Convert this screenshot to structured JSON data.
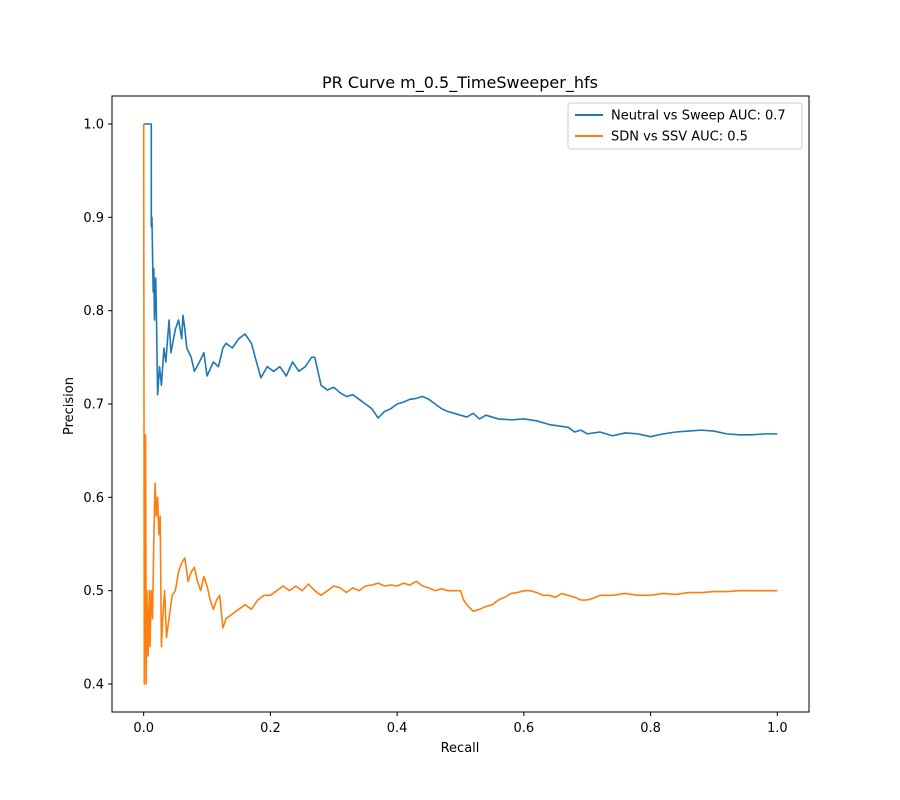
{
  "chart_data": {
    "type": "line",
    "title": "PR Curve m_0.5_TimeSweeper_hfs",
    "xlabel": "Recall",
    "ylabel": "Precision",
    "xlim": [
      -0.05,
      1.05
    ],
    "ylim": [
      0.37,
      1.03
    ],
    "xticks": [
      0.0,
      0.2,
      0.4,
      0.6,
      0.8,
      1.0
    ],
    "xtick_labels": [
      "0.0",
      "0.2",
      "0.4",
      "0.6",
      "0.8",
      "1.0"
    ],
    "yticks": [
      0.4,
      0.5,
      0.6,
      0.7,
      0.8,
      0.9,
      1.0
    ],
    "ytick_labels": [
      "0.4",
      "0.5",
      "0.6",
      "0.7",
      "0.8",
      "0.9",
      "1.0"
    ],
    "grid": false,
    "legend_position": "upper right",
    "series": [
      {
        "name": "Neutral vs Sweep AUC: 0.7",
        "color": "#1f77b4",
        "points": [
          [
            0.0,
            1.0
          ],
          [
            0.012,
            1.0
          ],
          [
            0.012,
            0.89
          ],
          [
            0.013,
            0.9
          ],
          [
            0.015,
            0.82
          ],
          [
            0.016,
            0.845
          ],
          [
            0.017,
            0.79
          ],
          [
            0.019,
            0.835
          ],
          [
            0.02,
            0.8
          ],
          [
            0.022,
            0.71
          ],
          [
            0.025,
            0.74
          ],
          [
            0.028,
            0.72
          ],
          [
            0.032,
            0.76
          ],
          [
            0.035,
            0.745
          ],
          [
            0.04,
            0.79
          ],
          [
            0.043,
            0.755
          ],
          [
            0.05,
            0.78
          ],
          [
            0.055,
            0.79
          ],
          [
            0.06,
            0.77
          ],
          [
            0.062,
            0.795
          ],
          [
            0.065,
            0.78
          ],
          [
            0.068,
            0.76
          ],
          [
            0.075,
            0.75
          ],
          [
            0.08,
            0.735
          ],
          [
            0.088,
            0.745
          ],
          [
            0.095,
            0.755
          ],
          [
            0.1,
            0.73
          ],
          [
            0.11,
            0.745
          ],
          [
            0.118,
            0.74
          ],
          [
            0.125,
            0.76
          ],
          [
            0.13,
            0.765
          ],
          [
            0.14,
            0.76
          ],
          [
            0.15,
            0.77
          ],
          [
            0.16,
            0.775
          ],
          [
            0.17,
            0.765
          ],
          [
            0.18,
            0.74
          ],
          [
            0.185,
            0.728
          ],
          [
            0.195,
            0.74
          ],
          [
            0.205,
            0.735
          ],
          [
            0.215,
            0.74
          ],
          [
            0.225,
            0.73
          ],
          [
            0.235,
            0.745
          ],
          [
            0.245,
            0.735
          ],
          [
            0.255,
            0.74
          ],
          [
            0.265,
            0.75
          ],
          [
            0.27,
            0.75
          ],
          [
            0.275,
            0.735
          ],
          [
            0.28,
            0.72
          ],
          [
            0.29,
            0.715
          ],
          [
            0.3,
            0.718
          ],
          [
            0.31,
            0.712
          ],
          [
            0.32,
            0.708
          ],
          [
            0.33,
            0.71
          ],
          [
            0.34,
            0.705
          ],
          [
            0.35,
            0.7
          ],
          [
            0.36,
            0.695
          ],
          [
            0.365,
            0.69
          ],
          [
            0.37,
            0.685
          ],
          [
            0.38,
            0.692
          ],
          [
            0.39,
            0.695
          ],
          [
            0.4,
            0.7
          ],
          [
            0.41,
            0.702
          ],
          [
            0.42,
            0.705
          ],
          [
            0.43,
            0.706
          ],
          [
            0.44,
            0.708
          ],
          [
            0.45,
            0.705
          ],
          [
            0.46,
            0.7
          ],
          [
            0.47,
            0.695
          ],
          [
            0.48,
            0.692
          ],
          [
            0.49,
            0.69
          ],
          [
            0.5,
            0.688
          ],
          [
            0.51,
            0.686
          ],
          [
            0.52,
            0.69
          ],
          [
            0.53,
            0.684
          ],
          [
            0.54,
            0.688
          ],
          [
            0.55,
            0.686
          ],
          [
            0.56,
            0.684
          ],
          [
            0.58,
            0.683
          ],
          [
            0.6,
            0.684
          ],
          [
            0.62,
            0.682
          ],
          [
            0.64,
            0.678
          ],
          [
            0.66,
            0.676
          ],
          [
            0.67,
            0.675
          ],
          [
            0.68,
            0.67
          ],
          [
            0.69,
            0.672
          ],
          [
            0.7,
            0.668
          ],
          [
            0.72,
            0.67
          ],
          [
            0.74,
            0.666
          ],
          [
            0.76,
            0.669
          ],
          [
            0.78,
            0.668
          ],
          [
            0.8,
            0.665
          ],
          [
            0.82,
            0.668
          ],
          [
            0.84,
            0.67
          ],
          [
            0.86,
            0.671
          ],
          [
            0.88,
            0.672
          ],
          [
            0.9,
            0.671
          ],
          [
            0.92,
            0.668
          ],
          [
            0.94,
            0.667
          ],
          [
            0.96,
            0.667
          ],
          [
            0.98,
            0.668
          ],
          [
            1.0,
            0.668
          ]
        ]
      },
      {
        "name": "SDN vs SSV AUC: 0.5",
        "color": "#ff7f0e",
        "points": [
          [
            0.0,
            1.0
          ],
          [
            0.001,
            0.4
          ],
          [
            0.002,
            0.5
          ],
          [
            0.003,
            0.667
          ],
          [
            0.004,
            0.4
          ],
          [
            0.005,
            0.5
          ],
          [
            0.007,
            0.43
          ],
          [
            0.008,
            0.47
          ],
          [
            0.009,
            0.5
          ],
          [
            0.01,
            0.44
          ],
          [
            0.012,
            0.5
          ],
          [
            0.014,
            0.47
          ],
          [
            0.016,
            0.555
          ],
          [
            0.018,
            0.615
          ],
          [
            0.02,
            0.58
          ],
          [
            0.022,
            0.6
          ],
          [
            0.024,
            0.56
          ],
          [
            0.026,
            0.58
          ],
          [
            0.028,
            0.44
          ],
          [
            0.03,
            0.47
          ],
          [
            0.033,
            0.5
          ],
          [
            0.036,
            0.45
          ],
          [
            0.04,
            0.47
          ],
          [
            0.045,
            0.495
          ],
          [
            0.05,
            0.5
          ],
          [
            0.055,
            0.52
          ],
          [
            0.06,
            0.53
          ],
          [
            0.065,
            0.535
          ],
          [
            0.07,
            0.51
          ],
          [
            0.075,
            0.52
          ],
          [
            0.08,
            0.525
          ],
          [
            0.085,
            0.51
          ],
          [
            0.09,
            0.5
          ],
          [
            0.095,
            0.515
          ],
          [
            0.1,
            0.505
          ],
          [
            0.105,
            0.49
          ],
          [
            0.11,
            0.48
          ],
          [
            0.115,
            0.49
          ],
          [
            0.12,
            0.495
          ],
          [
            0.125,
            0.46
          ],
          [
            0.13,
            0.47
          ],
          [
            0.14,
            0.475
          ],
          [
            0.15,
            0.48
          ],
          [
            0.16,
            0.485
          ],
          [
            0.17,
            0.48
          ],
          [
            0.18,
            0.49
          ],
          [
            0.19,
            0.495
          ],
          [
            0.2,
            0.495
          ],
          [
            0.21,
            0.5
          ],
          [
            0.22,
            0.505
          ],
          [
            0.23,
            0.5
          ],
          [
            0.24,
            0.505
          ],
          [
            0.25,
            0.5
          ],
          [
            0.26,
            0.507
          ],
          [
            0.27,
            0.5
          ],
          [
            0.28,
            0.495
          ],
          [
            0.29,
            0.5
          ],
          [
            0.3,
            0.505
          ],
          [
            0.31,
            0.503
          ],
          [
            0.32,
            0.498
          ],
          [
            0.33,
            0.503
          ],
          [
            0.34,
            0.5
          ],
          [
            0.35,
            0.505
          ],
          [
            0.36,
            0.506
          ],
          [
            0.37,
            0.508
          ],
          [
            0.38,
            0.505
          ],
          [
            0.39,
            0.506
          ],
          [
            0.4,
            0.505
          ],
          [
            0.41,
            0.508
          ],
          [
            0.42,
            0.506
          ],
          [
            0.43,
            0.51
          ],
          [
            0.44,
            0.505
          ],
          [
            0.45,
            0.503
          ],
          [
            0.46,
            0.5
          ],
          [
            0.47,
            0.502
          ],
          [
            0.48,
            0.5
          ],
          [
            0.49,
            0.5
          ],
          [
            0.5,
            0.5
          ],
          [
            0.505,
            0.49
          ],
          [
            0.51,
            0.485
          ],
          [
            0.52,
            0.478
          ],
          [
            0.53,
            0.48
          ],
          [
            0.54,
            0.483
          ],
          [
            0.55,
            0.485
          ],
          [
            0.56,
            0.49
          ],
          [
            0.57,
            0.493
          ],
          [
            0.58,
            0.497
          ],
          [
            0.59,
            0.498
          ],
          [
            0.6,
            0.5
          ],
          [
            0.61,
            0.5
          ],
          [
            0.62,
            0.498
          ],
          [
            0.63,
            0.495
          ],
          [
            0.64,
            0.495
          ],
          [
            0.65,
            0.493
          ],
          [
            0.66,
            0.497
          ],
          [
            0.67,
            0.495
          ],
          [
            0.68,
            0.493
          ],
          [
            0.69,
            0.49
          ],
          [
            0.7,
            0.49
          ],
          [
            0.71,
            0.492
          ],
          [
            0.72,
            0.495
          ],
          [
            0.74,
            0.495
          ],
          [
            0.76,
            0.497
          ],
          [
            0.78,
            0.495
          ],
          [
            0.8,
            0.495
          ],
          [
            0.82,
            0.497
          ],
          [
            0.84,
            0.496
          ],
          [
            0.86,
            0.498
          ],
          [
            0.88,
            0.498
          ],
          [
            0.9,
            0.499
          ],
          [
            0.92,
            0.499
          ],
          [
            0.94,
            0.5
          ],
          [
            0.96,
            0.5
          ],
          [
            0.98,
            0.5
          ],
          [
            1.0,
            0.5
          ]
        ]
      }
    ]
  }
}
